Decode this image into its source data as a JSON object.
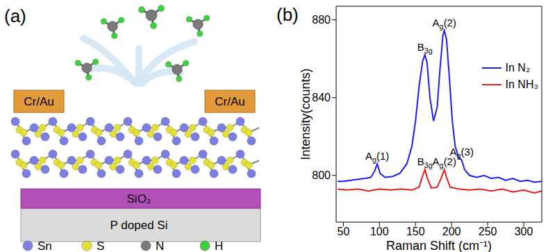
{
  "diagram": {
    "label": "(a)",
    "electrodes": [
      "Cr/Au",
      "Cr/Au"
    ],
    "layers": [
      "SiO₂",
      "P doped Si"
    ],
    "legend": [
      {
        "label": "Sn",
        "color": "#7c7ee0"
      },
      {
        "label": "S",
        "color": "#e4e03a"
      },
      {
        "label": "N",
        "color": "#7a7a7a"
      },
      {
        "label": "H",
        "color": "#3fd03f"
      }
    ]
  },
  "chart_data": {
    "type": "line",
    "panel_label": "(b)",
    "x_label": "Raman Shift (cm⁻¹)",
    "y_label": "Intensity(counts)",
    "xlim": [
      40,
      325
    ],
    "xticks": [
      50,
      100,
      150,
      200,
      250,
      300
    ],
    "ylim": [
      776,
      887
    ],
    "yticks": [
      800,
      840,
      880
    ],
    "legend": "upper right",
    "series": [
      {
        "name": "In N₂",
        "color": "#1c1cf0",
        "x": [
          42,
          50,
          60,
          70,
          80,
          88,
          93,
          97,
          101,
          108,
          118,
          128,
          138,
          145,
          150,
          155,
          160,
          163,
          166,
          170,
          175,
          180,
          184,
          188,
          190,
          193,
          197,
          201,
          205,
          210,
          214,
          218,
          225,
          235,
          245,
          255,
          265,
          275,
          285,
          295,
          305,
          315,
          325
        ],
        "values": [
          797,
          797,
          797.5,
          798,
          798.5,
          799,
          802,
          806,
          801,
          799,
          799.5,
          801,
          806,
          815,
          828,
          846,
          859,
          862,
          858,
          840,
          828,
          835,
          855,
          872,
          874.5,
          870,
          850,
          828,
          815,
          809,
          808,
          803,
          800,
          799,
          800,
          798.5,
          799,
          797.5,
          798.5,
          797,
          797.5,
          796.5,
          797
        ]
      },
      {
        "name": "In NH₃",
        "color": "#e0201a",
        "x": [
          42,
          55,
          70,
          85,
          100,
          115,
          130,
          145,
          155,
          160,
          163,
          166,
          172,
          180,
          186,
          190,
          193,
          198,
          210,
          225,
          240,
          255,
          270,
          285,
          300,
          315,
          325
        ],
        "values": [
          793,
          792.5,
          793,
          792,
          793,
          792.5,
          793,
          792.5,
          794,
          800,
          803,
          799,
          793.5,
          794,
          799,
          803,
          799,
          794,
          793,
          792.5,
          793,
          792,
          793,
          791.5,
          792.5,
          791,
          792
        ]
      }
    ],
    "annotations": [
      {
        "text": {
          "main": "A",
          "sub": "g",
          "after": "(1)"
        },
        "x": 97,
        "y": 806
      },
      {
        "text": {
          "main": "B",
          "sub": "3g"
        },
        "x": 163,
        "y": 862
      },
      {
        "text": {
          "main": "A",
          "sub": "g",
          "after": "(2)"
        },
        "x": 190,
        "y": 874.5
      },
      {
        "text": {
          "main": "A",
          "sub": "g",
          "after": "(3)"
        },
        "x": 214,
        "y": 808
      },
      {
        "text": {
          "main": "B",
          "sub": "3g"
        },
        "x": 163,
        "y": 803
      },
      {
        "text": {
          "main": "A",
          "sub": "g",
          "after": "(2)"
        },
        "x": 190,
        "y": 803
      }
    ]
  }
}
